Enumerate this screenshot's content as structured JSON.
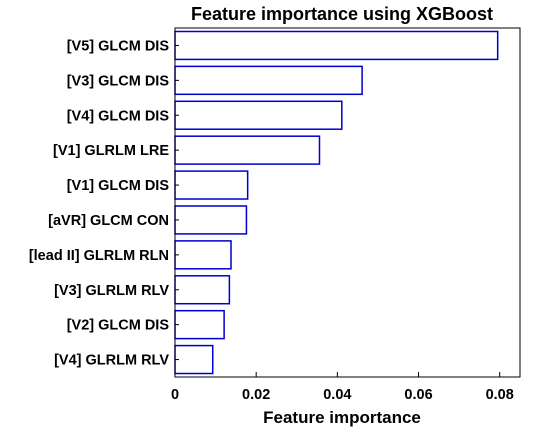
{
  "chart_data": {
    "type": "bar",
    "orientation": "horizontal",
    "title": "Feature importance using XGBoost",
    "xlabel": "Feature importance",
    "ylabel": "",
    "xlim": [
      0,
      0.085
    ],
    "xticks": [
      0,
      0.02,
      0.04,
      0.06,
      0.08
    ],
    "xtick_labels": [
      "0",
      "0.02",
      "0.04",
      "0.06",
      "0.08"
    ],
    "grid": false,
    "bar_color": "#0000cc",
    "bar_fill": "#ffffff",
    "categories": [
      "[V5] GLCM DIS",
      "[V3] GLCM DIS",
      "[V4] GLCM DIS",
      "[V1] GLRLM LRE",
      "[V1] GLCM DIS",
      "[aVR] GLCM CON",
      "[lead II] GLRLM RLN",
      "[V3] GLRLM RLV",
      "[V2] GLCM DIS",
      "[V4] GLRLM RLV"
    ],
    "values": [
      0.0795,
      0.0461,
      0.0411,
      0.0356,
      0.0179,
      0.0176,
      0.0138,
      0.0134,
      0.0121,
      0.0093
    ]
  }
}
